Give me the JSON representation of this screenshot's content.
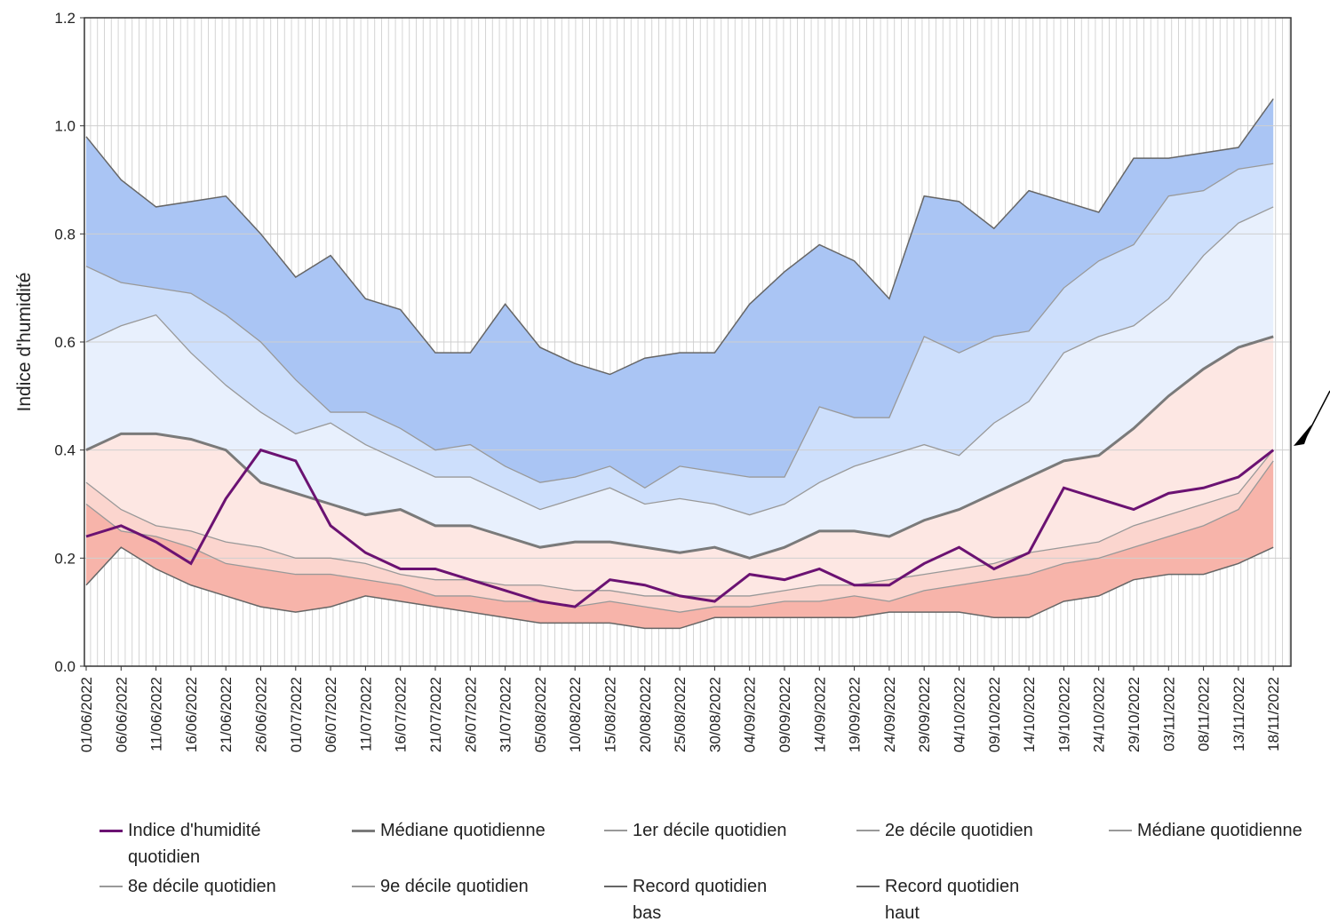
{
  "chart_data": {
    "type": "line",
    "y_label": "Indice d'humidité",
    "categories": [
      "01/06/2022",
      "06/06/2022",
      "11/06/2022",
      "16/06/2022",
      "21/06/2022",
      "26/06/2022",
      "01/07/2022",
      "06/07/2022",
      "11/07/2022",
      "16/07/2022",
      "21/07/2022",
      "26/07/2022",
      "31/07/2022",
      "05/08/2022",
      "10/08/2022",
      "15/08/2022",
      "20/08/2022",
      "25/08/2022",
      "30/08/2022",
      "04/09/2022",
      "09/09/2022",
      "14/09/2022",
      "19/09/2022",
      "24/09/2022",
      "29/09/2022",
      "04/10/2022",
      "09/10/2022",
      "14/10/2022",
      "19/10/2022",
      "24/10/2022",
      "29/10/2022",
      "03/11/2022",
      "08/11/2022",
      "13/11/2022",
      "18/11/2022"
    ],
    "ylim": [
      0,
      1.2
    ],
    "yticks": [
      {
        "value": 0,
        "label": "0.0"
      },
      0.2,
      0.4,
      0.6,
      0.8,
      {
        "value": 1,
        "label": "1.0"
      },
      1.2
    ],
    "grid": true,
    "series": [
      {
        "name": "Indice d'humidité quotidien",
        "color": "#6b1272",
        "width": 3,
        "values": [
          0.24,
          0.26,
          0.23,
          0.19,
          0.31,
          0.4,
          0.38,
          0.26,
          0.21,
          0.18,
          0.18,
          0.16,
          0.14,
          0.12,
          0.11,
          0.16,
          0.15,
          0.13,
          0.12,
          0.17,
          0.16,
          0.18,
          0.15,
          0.15,
          0.19,
          0.22,
          0.18,
          0.21,
          0.33,
          0.31,
          0.29,
          0.32,
          0.33,
          0.35,
          0.4
        ]
      },
      {
        "name": "Médiane quotidienne",
        "color": "#7a7a7a",
        "width": 3,
        "fill": "#fde7e3",
        "values": [
          0.4,
          0.43,
          0.43,
          0.42,
          0.4,
          0.34,
          0.32,
          0.3,
          0.28,
          0.29,
          0.26,
          0.26,
          0.24,
          0.22,
          0.23,
          0.23,
          0.22,
          0.21,
          0.22,
          0.2,
          0.22,
          0.25,
          0.25,
          0.24,
          0.27,
          0.29,
          0.32,
          0.35,
          0.38,
          0.39,
          0.44,
          0.5,
          0.55,
          0.59,
          0.61
        ]
      },
      {
        "name": "1er décile quotidien",
        "color": "#999999",
        "width": 1.3,
        "fill": "#f7b4aa",
        "values": [
          0.3,
          0.25,
          0.24,
          0.22,
          0.19,
          0.18,
          0.17,
          0.17,
          0.16,
          0.15,
          0.13,
          0.13,
          0.12,
          0.12,
          0.11,
          0.12,
          0.11,
          0.1,
          0.11,
          0.11,
          0.12,
          0.12,
          0.13,
          0.12,
          0.14,
          0.15,
          0.16,
          0.17,
          0.19,
          0.2,
          0.22,
          0.24,
          0.26,
          0.29,
          0.38
        ]
      },
      {
        "name": "2e décile quotidien",
        "color": "#999999",
        "width": 1.3,
        "fill": "#fbd5ce",
        "values": [
          0.34,
          0.29,
          0.26,
          0.25,
          0.23,
          0.22,
          0.2,
          0.2,
          0.19,
          0.17,
          0.16,
          0.16,
          0.15,
          0.15,
          0.14,
          0.14,
          0.13,
          0.13,
          0.13,
          0.13,
          0.14,
          0.15,
          0.15,
          0.16,
          0.17,
          0.18,
          0.19,
          0.21,
          0.22,
          0.23,
          0.26,
          0.28,
          0.3,
          0.32,
          0.4
        ]
      },
      {
        "name": "Médiane quotidienne",
        "color": "#999999",
        "width": 1.3,
        "values": [
          0.4,
          0.43,
          0.43,
          0.42,
          0.4,
          0.34,
          0.32,
          0.3,
          0.28,
          0.29,
          0.26,
          0.26,
          0.24,
          0.22,
          0.23,
          0.23,
          0.22,
          0.21,
          0.22,
          0.2,
          0.22,
          0.25,
          0.25,
          0.24,
          0.27,
          0.29,
          0.32,
          0.35,
          0.38,
          0.39,
          0.44,
          0.5,
          0.55,
          0.59,
          0.61
        ]
      },
      {
        "name": "8e décile quotidien",
        "color": "#999999",
        "width": 1.3,
        "fill": "#e8f0fd",
        "values": [
          0.6,
          0.63,
          0.65,
          0.58,
          0.52,
          0.47,
          0.43,
          0.45,
          0.41,
          0.38,
          0.35,
          0.35,
          0.32,
          0.29,
          0.31,
          0.33,
          0.3,
          0.31,
          0.3,
          0.28,
          0.3,
          0.34,
          0.37,
          0.39,
          0.41,
          0.39,
          0.45,
          0.49,
          0.58,
          0.61,
          0.63,
          0.68,
          0.76,
          0.82,
          0.85
        ]
      },
      {
        "name": "9e décile quotidien",
        "color": "#999999",
        "width": 1.3,
        "fill": "#cddffc",
        "values": [
          0.74,
          0.71,
          0.7,
          0.69,
          0.65,
          0.6,
          0.53,
          0.47,
          0.47,
          0.44,
          0.4,
          0.41,
          0.37,
          0.34,
          0.35,
          0.37,
          0.33,
          0.37,
          0.36,
          0.35,
          0.35,
          0.48,
          0.46,
          0.46,
          0.61,
          0.58,
          0.61,
          0.62,
          0.7,
          0.75,
          0.78,
          0.87,
          0.88,
          0.92,
          0.93
        ]
      },
      {
        "name": "Record quotidien bas",
        "color": "#666666",
        "width": 1.5,
        "values": [
          0.15,
          0.22,
          0.18,
          0.15,
          0.13,
          0.11,
          0.1,
          0.11,
          0.13,
          0.12,
          0.11,
          0.1,
          0.09,
          0.08,
          0.08,
          0.08,
          0.07,
          0.07,
          0.09,
          0.09,
          0.09,
          0.09,
          0.09,
          0.1,
          0.1,
          0.1,
          0.09,
          0.09,
          0.12,
          0.13,
          0.16,
          0.17,
          0.17,
          0.19,
          0.22
        ]
      },
      {
        "name": "Record quotidien haut",
        "color": "#666666",
        "width": 1.5,
        "fill": "#aac5f4",
        "values": [
          0.98,
          0.9,
          0.85,
          0.86,
          0.87,
          0.8,
          0.72,
          0.76,
          0.68,
          0.66,
          0.58,
          0.58,
          0.67,
          0.59,
          0.56,
          0.54,
          0.57,
          0.58,
          0.58,
          0.67,
          0.73,
          0.78,
          0.75,
          0.68,
          0.87,
          0.86,
          0.81,
          0.88,
          0.86,
          0.84,
          0.94,
          0.94,
          0.95,
          0.96,
          1.05
        ]
      }
    ]
  }
}
